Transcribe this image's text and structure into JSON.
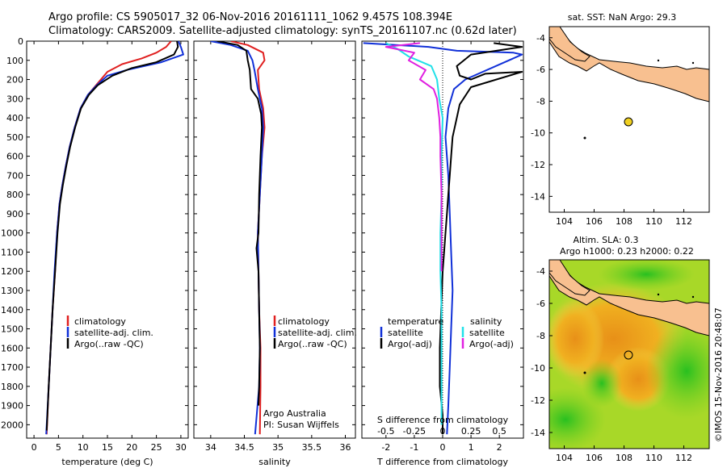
{
  "header": {
    "line1": "Argo profile: CS 5905017_32 06-Nov-2016 20161111_1062 9.457S 108.394E",
    "line2": "Climatology: CARS2009. Satellite-adjusted climatology: synTS_20161107.nc (0.62d later)"
  },
  "colors": {
    "climatology": "#e02020",
    "satellite": "#1030d8",
    "argo": "#000000",
    "argo_s": "#e020e0",
    "sat_s": "#20e0e8",
    "land": "#f8c090",
    "argo_dot": "#f0d020"
  },
  "chart_data": [
    {
      "type": "line",
      "id": "temperature",
      "xlabel": "temperature (deg C)",
      "ylabel": "",
      "xlim": [
        -1.5,
        31.5
      ],
      "ylim": [
        0,
        2070
      ],
      "y_inverted": true,
      "xticks": [
        0,
        5,
        10,
        15,
        20,
        25,
        30
      ],
      "yticks": [
        0,
        100,
        200,
        300,
        400,
        500,
        600,
        700,
        800,
        900,
        1000,
        1100,
        1200,
        1300,
        1400,
        1500,
        1600,
        1700,
        1800,
        1900,
        2000
      ],
      "legend": [
        "climatology",
        "satellite-adj. clim.",
        "Argo(..raw -QC)"
      ],
      "series": [
        {
          "name": "climatology",
          "values": [
            [
              28,
              0
            ],
            [
              27,
              30
            ],
            [
              25,
              60
            ],
            [
              22,
              90
            ],
            [
              18,
              120
            ],
            [
              15,
              160
            ],
            [
              13,
              220
            ],
            [
              11,
              280
            ],
            [
              9.5,
              350
            ],
            [
              8.3,
              450
            ],
            [
              7.3,
              550
            ],
            [
              6.5,
              650
            ],
            [
              5.8,
              750
            ],
            [
              5.2,
              850
            ],
            [
              4.7,
              1000
            ],
            [
              4.3,
              1200
            ],
            [
              3.8,
              1400
            ],
            [
              3.4,
              1600
            ],
            [
              3,
              1800
            ],
            [
              2.6,
              2050
            ]
          ]
        },
        {
          "name": "satellite",
          "values": [
            [
              29.5,
              0
            ],
            [
              30,
              30
            ],
            [
              30.5,
              70
            ],
            [
              26,
              110
            ],
            [
              19,
              150
            ],
            [
              15,
              180
            ],
            [
              12.8,
              230
            ],
            [
              11,
              280
            ],
            [
              9.5,
              350
            ],
            [
              8.3,
              450
            ],
            [
              7.3,
              550
            ],
            [
              6.5,
              650
            ],
            [
              5.8,
              750
            ],
            [
              5.2,
              850
            ],
            [
              4.7,
              1000
            ],
            [
              4.2,
              1200
            ],
            [
              3.8,
              1400
            ],
            [
              3.4,
              1600
            ],
            [
              3,
              1800
            ],
            [
              2.5,
              2050
            ]
          ]
        },
        {
          "name": "argo",
          "values": [
            [
              29.2,
              0
            ],
            [
              29.4,
              30
            ],
            [
              28.6,
              70
            ],
            [
              25,
              110
            ],
            [
              20,
              140
            ],
            [
              16,
              180
            ],
            [
              13,
              230
            ],
            [
              11.2,
              280
            ],
            [
              9.6,
              350
            ],
            [
              8.4,
              450
            ],
            [
              7.4,
              550
            ],
            [
              6.6,
              650
            ],
            [
              5.9,
              750
            ],
            [
              5.3,
              850
            ],
            [
              4.8,
              1000
            ],
            [
              4.3,
              1200
            ],
            [
              3.8,
              1400
            ],
            [
              3.4,
              1600
            ],
            [
              3,
              1800
            ],
            [
              2.6,
              2030
            ]
          ]
        }
      ]
    },
    {
      "type": "line",
      "id": "salinity",
      "xlabel": "salinity",
      "xlim": [
        33.75,
        36.15
      ],
      "ylim": [
        0,
        2070
      ],
      "y_inverted": true,
      "xticks": [
        34,
        34.5,
        35,
        35.5,
        36
      ],
      "legend": [
        "climatology",
        "satellite-adj. clim.",
        "Argo(..raw -QC)"
      ],
      "credit": [
        "Argo Australia",
        "PI: Susan Wijffels"
      ],
      "series": [
        {
          "name": "climatology",
          "values": [
            [
              34.3,
              0
            ],
            [
              34.55,
              20
            ],
            [
              34.78,
              60
            ],
            [
              34.8,
              100
            ],
            [
              34.7,
              150
            ],
            [
              34.72,
              250
            ],
            [
              34.78,
              350
            ],
            [
              34.8,
              450
            ],
            [
              34.76,
              600
            ],
            [
              34.73,
              800
            ],
            [
              34.7,
              1000
            ],
            [
              34.71,
              1200
            ],
            [
              34.72,
              1400
            ],
            [
              34.74,
              1600
            ],
            [
              34.74,
              1800
            ],
            [
              34.73,
              2050
            ]
          ]
        },
        {
          "name": "satellite",
          "values": [
            [
              34,
              0
            ],
            [
              34.3,
              20
            ],
            [
              34.55,
              50
            ],
            [
              34.62,
              100
            ],
            [
              34.65,
              150
            ],
            [
              34.7,
              250
            ],
            [
              34.76,
              350
            ],
            [
              34.78,
              450
            ],
            [
              34.76,
              600
            ],
            [
              34.73,
              800
            ],
            [
              34.7,
              1000
            ],
            [
              34.71,
              1200
            ],
            [
              34.72,
              1400
            ],
            [
              34.73,
              1600
            ],
            [
              34.72,
              1800
            ],
            [
              34.66,
              2050
            ]
          ]
        },
        {
          "name": "argo",
          "values": [
            [
              34.1,
              0
            ],
            [
              34.4,
              20
            ],
            [
              34.53,
              50
            ],
            [
              34.55,
              100
            ],
            [
              34.58,
              150
            ],
            [
              34.6,
              250
            ],
            [
              34.7,
              300
            ],
            [
              34.75,
              380
            ],
            [
              34.76,
              450
            ],
            [
              34.74,
              600
            ],
            [
              34.72,
              800
            ],
            [
              34.71,
              1000
            ],
            [
              34.68,
              1080
            ],
            [
              34.71,
              1200
            ],
            [
              34.72,
              1400
            ],
            [
              34.73,
              1600
            ],
            [
              34.72,
              1800
            ],
            [
              34.71,
              1900
            ]
          ]
        }
      ]
    },
    {
      "type": "line",
      "id": "differences",
      "xlabel": "T difference from climatology",
      "top_label": "S difference from climatology",
      "xlim": [
        -2.85,
        2.85
      ],
      "ylim": [
        0,
        2070
      ],
      "y_inverted": true,
      "xticks": [
        -2,
        -1,
        0,
        1,
        2
      ],
      "xticks_labels": [
        "-2",
        "-1",
        "0",
        "1",
        "2"
      ],
      "s_ticks": [
        -0.5,
        -0.25,
        0,
        0.25,
        0.5
      ],
      "s_ticks_labels": [
        "-0.5",
        "-0.25",
        "0",
        "0.25",
        "0.5"
      ],
      "legend_temperature": {
        "heading": "temperature",
        "items": [
          "satellite",
          "Argo(-adj)"
        ]
      },
      "legend_salinity": {
        "heading": "salinity",
        "items": [
          "satellite",
          "Argo(-adj)"
        ]
      },
      "series": [
        {
          "name": "T satellite",
          "values": [
            [
              -2.8,
              10
            ],
            [
              -0.5,
              30
            ],
            [
              0.5,
              50
            ],
            [
              2.5,
              60
            ],
            [
              2.8,
              70
            ],
            [
              0.8,
              200
            ],
            [
              0.4,
              250
            ],
            [
              0.2,
              350
            ],
            [
              0.1,
              500
            ],
            [
              0.2,
              700
            ],
            [
              0.25,
              900
            ],
            [
              0.3,
              1100
            ],
            [
              0.35,
              1300
            ],
            [
              0.3,
              1500
            ],
            [
              0.25,
              1700
            ],
            [
              0.2,
              1900
            ],
            [
              0.15,
              2050
            ]
          ]
        },
        {
          "name": "T argo",
          "values": [
            [
              1.8,
              10
            ],
            [
              2.8,
              30
            ],
            [
              1,
              70
            ],
            [
              0.5,
              130
            ],
            [
              0.6,
              180
            ],
            [
              1,
              200
            ],
            [
              1.5,
              170
            ],
            [
              2.8,
              160
            ],
            [
              1,
              240
            ],
            [
              0.6,
              330
            ],
            [
              0.5,
              400
            ],
            [
              0.35,
              500
            ],
            [
              0.3,
              600
            ],
            [
              0.25,
              700
            ],
            [
              0.2,
              800
            ],
            [
              0.15,
              900
            ],
            [
              0.1,
              1000
            ],
            [
              0.05,
              1100
            ],
            [
              0,
              1200
            ],
            [
              -0.05,
              1400
            ],
            [
              -0.1,
              1600
            ],
            [
              -0.1,
              1800
            ],
            [
              0,
              1950
            ],
            [
              0,
              2050
            ]
          ]
        },
        {
          "name": "S satellite",
          "values": [
            [
              -0.5,
              10
            ],
            [
              -0.4,
              40
            ],
            [
              -0.3,
              80
            ],
            [
              -0.1,
              130
            ],
            [
              -0.05,
              200
            ],
            [
              -0.03,
              300
            ],
            [
              0,
              400
            ],
            [
              -0.01,
              600
            ],
            [
              -0.01,
              800
            ],
            [
              -0.02,
              1000
            ],
            [
              -0.02,
              1200
            ],
            [
              -0.01,
              1400
            ],
            [
              -0.01,
              1600
            ],
            [
              -0.01,
              1800
            ],
            [
              -0.01,
              2000
            ]
          ]
        },
        {
          "name": "S argo",
          "values": [
            [
              -0.2,
              10
            ],
            [
              -0.5,
              30
            ],
            [
              -0.25,
              60
            ],
            [
              -0.3,
              100
            ],
            [
              -0.15,
              150
            ],
            [
              -0.2,
              200
            ],
            [
              -0.08,
              250
            ],
            [
              -0.05,
              300
            ],
            [
              -0.03,
              400
            ],
            [
              -0.02,
              500
            ],
            [
              -0.02,
              600
            ],
            [
              -0.01,
              800
            ],
            [
              -0.01,
              1000
            ],
            [
              -0.01,
              1200
            ]
          ]
        }
      ]
    }
  ],
  "map_sst": {
    "title": "sat. SST: NaN Argo: 29.3",
    "xticks": [
      104,
      106,
      108,
      110,
      112
    ],
    "yticks": [
      -4,
      -6,
      -8,
      -10,
      -12,
      -14
    ],
    "float_position": {
      "lon": 108.394,
      "lat": -9.457
    }
  },
  "map_sla": {
    "title1": "Altim. SLA: 0.3",
    "title2": "Argo h1000: 0.23 h2000: 0.22",
    "xticks": [
      104,
      106,
      108,
      110,
      112
    ],
    "yticks": [
      -4,
      -6,
      -8,
      -10,
      -12,
      -14
    ],
    "float_position": {
      "lon": 108.394,
      "lat": -9.457
    }
  },
  "footer": {
    "stamp": "©IMOS 15-Nov-2016 20:48:07"
  }
}
